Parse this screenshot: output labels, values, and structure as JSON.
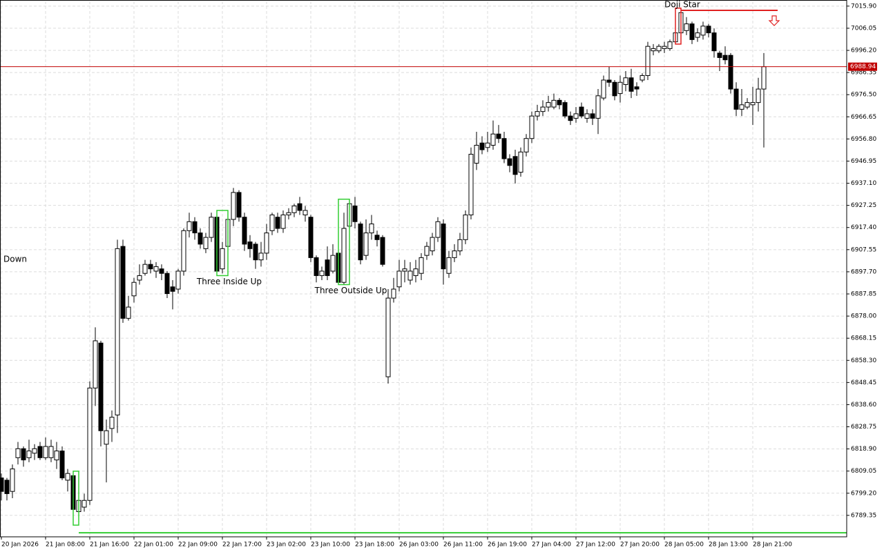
{
  "chart_data": {
    "type": "candlestick",
    "categories": [
      "20 Jan 2026",
      null,
      null,
      null,
      null,
      null,
      null,
      null,
      "21 Jan 08:00",
      null,
      null,
      null,
      null,
      null,
      null,
      null,
      "21 Jan 16:00",
      null,
      null,
      null,
      null,
      null,
      null,
      null,
      "22 Jan 01:00",
      null,
      null,
      null,
      null,
      null,
      null,
      null,
      "22 Jan 09:00",
      null,
      null,
      null,
      null,
      null,
      null,
      null,
      "22 Jan 17:00",
      null,
      null,
      null,
      null,
      null,
      null,
      null,
      "23 Jan 02:00",
      null,
      null,
      null,
      null,
      null,
      null,
      null,
      "23 Jan 10:00",
      null,
      null,
      null,
      null,
      null,
      null,
      null,
      "23 Jan 18:00",
      null,
      null,
      null,
      null,
      null,
      null,
      null,
      "26 Jan 03:00",
      null,
      null,
      null,
      null,
      null,
      null,
      null,
      "26 Jan 11:00",
      null,
      null,
      null,
      null,
      null,
      null,
      null,
      "26 Jan 19:00",
      null,
      null,
      null,
      null,
      null,
      null,
      null,
      "27 Jan 04:00",
      null,
      null,
      null,
      null,
      null,
      null,
      null,
      "27 Jan 12:00",
      null,
      null,
      null,
      null,
      null,
      null,
      null,
      "27 Jan 20:00",
      null,
      null,
      null,
      null,
      null,
      null,
      null,
      "28 Jan 05:00",
      null,
      null,
      null,
      null,
      null,
      null,
      null,
      "28 Jan 13:00",
      null,
      null,
      null,
      null,
      null,
      null,
      null,
      "28 Jan 21:00",
      null,
      null
    ],
    "open": [
      6806,
      6805,
      6800,
      6815,
      6819,
      6815,
      6817,
      6820,
      6815,
      6815,
      6814,
      6818,
      6805,
      6807,
      6791,
      6793,
      6796,
      6846,
      6866,
      6821,
      6828,
      6834,
      6909,
      6877,
      6887,
      6894,
      6897,
      6901,
      6898,
      6899,
      6897,
      6891,
      6890,
      6898,
      6916,
      6920,
      6915,
      6908,
      6913,
      6922,
      6899,
      6909,
      6921,
      6933,
      6922,
      6911,
      6910,
      6903,
      6906,
      6916,
      6922,
      6917,
      6923,
      6924,
      6928,
      6923,
      6922,
      6904,
      6896,
      6903,
      6898,
      6906,
      6893,
      6918,
      6927,
      6919,
      6905,
      6915,
      6914,
      6913,
      6851,
      6886,
      6891,
      6898,
      6894,
      6896,
      6897,
      6905,
      6907,
      6913,
      6919,
      6897,
      6904,
      6907,
      6912,
      6923,
      6946,
      6955,
      6953,
      6954,
      6959,
      6957,
      6948,
      6949,
      6942,
      6951,
      6957,
      6967,
      6969,
      6971,
      6971,
      6974,
      6973,
      6967,
      6966,
      6971,
      6966,
      6968,
      6966,
      6975,
      6983,
      6982,
      6977,
      6981,
      6984,
      6980,
      6983,
      6985,
      6996,
      6996,
      6997,
      6997,
      7000,
      7004,
      7005,
      7008,
      7002,
      7003,
      7007,
      7004,
      6995,
      6994,
      6994,
      6979,
      6970,
      6971,
      6972,
      6973,
      6979
    ],
    "high": [
      6808,
      6806,
      6812,
      6822,
      6820,
      6823,
      6821,
      6822,
      6824,
      6823,
      6822,
      6820,
      6810,
      6808,
      6809,
      6799,
      6849,
      6873,
      6867,
      6832,
      6836,
      6912,
      6912,
      6887,
      6895,
      6901,
      6903,
      6903,
      6902,
      6901,
      6898,
      6894,
      6899,
      6917,
      6924,
      6922,
      6917,
      6915,
      6924,
      6923,
      6911,
      6925,
      6935,
      6934,
      6924,
      6914,
      6911,
      6911,
      6919,
      6924,
      6924,
      6925,
      6926,
      6928,
      6931,
      6927,
      6923,
      6905,
      6900,
      6909,
      6910,
      6909,
      6924,
      6930,
      6931,
      6920,
      6921,
      6923,
      6916,
      6914,
      6890,
      6895,
      6903,
      6903,
      6902,
      6903,
      6906,
      6911,
      6915,
      6922,
      6921,
      6907,
      6910,
      6915,
      6925,
      6953,
      6960,
      6958,
      6960,
      6965,
      6963,
      6960,
      6950,
      6952,
      6953,
      6959,
      6969,
      6972,
      6974,
      6976,
      6977,
      6975,
      6974,
      6969,
      6971,
      6973,
      6970,
      6970,
      6979,
      6985,
      6989,
      6983,
      6985,
      6987,
      6988,
      6982,
      6986,
      7000,
      6999,
      6999,
      7000,
      7001,
      7012,
      7015,
      7011,
      7009,
      7006,
      7009,
      7008,
      7006,
      6996,
      6998,
      6995,
      6982,
      6979,
      6975,
      6980,
      6984,
      6995
    ],
    "low": [
      6796,
      6796,
      6797,
      6812,
      6811,
      6813,
      6814,
      6814,
      6814,
      6813,
      6810,
      6805,
      6800,
      6787,
      6785,
      6791,
      6794,
      6838,
      6820,
      6804,
      6822,
      6826,
      6875,
      6876,
      6884,
      6892,
      6896,
      6897,
      6895,
      6894,
      6886,
      6881,
      6888,
      6896,
      6913,
      6912,
      6908,
      6906,
      6911,
      6896,
      6897,
      6906,
      6918,
      6920,
      6907,
      6904,
      6899,
      6900,
      6903,
      6914,
      6915,
      6915,
      6921,
      6922,
      6923,
      6920,
      6902,
      6893,
      6894,
      6894,
      6897,
      6892,
      6892,
      6915,
      6917,
      6901,
      6903,
      6912,
      6909,
      6900,
      6848,
      6884,
      6889,
      6893,
      6892,
      6893,
      6894,
      6903,
      6905,
      6911,
      6892,
      6895,
      6902,
      6905,
      6910,
      6921,
      6943,
      6950,
      6951,
      6952,
      6955,
      6946,
      6942,
      6937,
      6940,
      6949,
      6955,
      6965,
      6967,
      6969,
      6970,
      6970,
      6966,
      6963,
      6964,
      6966,
      6964,
      6963,
      6959,
      6974,
      6980,
      6974,
      6973,
      6978,
      6975,
      6976,
      6982,
      6983,
      6994,
      6995,
      6995,
      6996,
      6999,
      7002,
      7003,
      6999,
      7000,
      7001,
      7002,
      6993,
      6987,
      6990,
      6977,
      6967,
      6967,
      6970,
      6963,
      6969,
      6953
    ],
    "close": [
      6800,
      6799,
      6810,
      6819,
      6814,
      6818,
      6819,
      6815,
      6820,
      6820,
      6818,
      6806,
      6808,
      6792,
      6796,
      6796,
      6846,
      6867,
      6827,
      6827,
      6833,
      6908,
      6877,
      6882,
      6893,
      6896,
      6901,
      6899,
      6900,
      6897,
      6888,
      6889,
      6898,
      6916,
      6920,
      6915,
      6910,
      6913,
      6922,
      6898,
      6908,
      6921,
      6933,
      6922,
      6910,
      6908,
      6903,
      6906,
      6915,
      6923,
      6917,
      6923,
      6924,
      6927,
      6925,
      6925,
      6904,
      6896,
      6898,
      6896,
      6905,
      6893,
      6917,
      6928,
      6920,
      6903,
      6915,
      6919,
      6912,
      6901,
      6886,
      6890,
      6898,
      6899,
      6898,
      6899,
      6904,
      6909,
      6913,
      6920,
      6899,
      6904,
      6907,
      6912,
      6923,
      6950,
      6954,
      6952,
      6955,
      6959,
      6957,
      6948,
      6945,
      6941,
      6951,
      6957,
      6967,
      6969,
      6971,
      6973,
      6974,
      6972,
      6967,
      6965,
      6968,
      6967,
      6968,
      6966,
      6976,
      6983,
      6982,
      6976,
      6982,
      6984,
      6978,
      6979,
      6985,
      6998,
      6997,
      6998,
      6998,
      7000,
      7004,
      7013,
      7008,
      7001,
      7004,
      7007,
      7004,
      6996,
      6993,
      6992,
      6979,
      6970,
      6972,
      6973,
      6973,
      6979,
      6988.94
    ],
    "ylim": [
      6779.8,
      7018.0
    ],
    "yticks": [
      {
        "value": 7015.9,
        "label": "7015.90"
      },
      7006.05,
      {
        "value": 6996.2,
        "label": "6996.20"
      },
      6986.35,
      {
        "value": 6976.5,
        "label": "6976.50"
      },
      6966.65,
      {
        "value": 6956.8,
        "label": "6956.80"
      },
      6946.95,
      {
        "value": 6937.1,
        "label": "6937.10"
      },
      6927.25,
      {
        "value": 6917.4,
        "label": "6917.40"
      },
      6907.55,
      {
        "value": 6897.7,
        "label": "6897.70"
      },
      6887.85,
      {
        "value": 6878,
        "label": "6878.00"
      },
      6868.15,
      {
        "value": 6858.3,
        "label": "6858.30"
      },
      6848.45,
      {
        "value": 6838.6,
        "label": "6838.60"
      },
      6828.75,
      {
        "value": 6818.9,
        "label": "6818.90"
      },
      6809.05,
      {
        "value": 6799.2,
        "label": "6799.20"
      },
      6789.35
    ],
    "grid": true,
    "bull_color": "#ffffff",
    "bear_color": "#000000",
    "last_price": 6988.94,
    "last_price_color": "#c00000",
    "annotations": [
      {
        "text": "Three Inside Up",
        "color": "#32cd32",
        "bars": [
          39,
          41
        ]
      },
      {
        "text": "Three Outside Up",
        "color": "#32cd32",
        "bars": [
          61,
          63
        ]
      },
      {
        "text": "Doji Star",
        "color": "#e02020",
        "bars": [
          122,
          123
        ],
        "level": 7014,
        "signal": "down"
      },
      {
        "color": "#32cd32",
        "bars": [
          13,
          14
        ],
        "level": 6781.6
      },
      {
        "text": "Down",
        "color": "#e02020"
      }
    ]
  }
}
